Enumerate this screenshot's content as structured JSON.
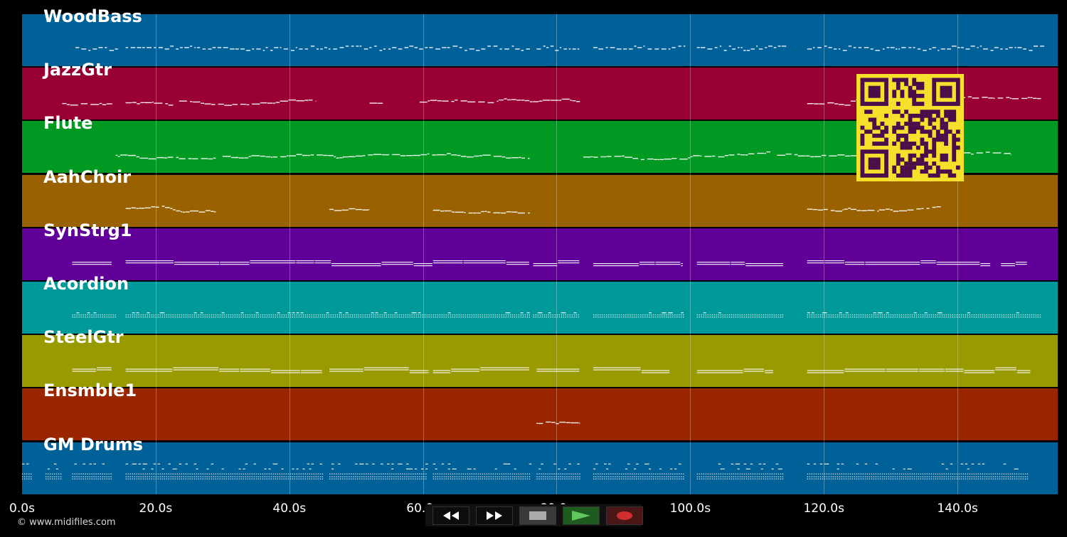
{
  "tracks": [
    {
      "name": "WoodBass",
      "color": "#006199",
      "density": "dense",
      "style": "dash",
      "segments": [
        [
          8,
          14
        ],
        [
          15.5,
          75.5
        ],
        [
          77,
          83.5
        ],
        [
          85.5,
          99
        ],
        [
          101,
          114
        ],
        [
          117.5,
          152.5
        ]
      ]
    },
    {
      "name": "JazzGtr",
      "color": "#990033",
      "density": "medium",
      "style": "melody",
      "segments": [
        [
          6,
          13.5
        ],
        [
          15.5,
          23
        ],
        [
          23.5,
          44
        ],
        [
          52,
          54
        ],
        [
          59.5,
          76
        ],
        [
          76,
          83.5
        ],
        [
          117.5,
          124
        ],
        [
          124,
          152.5
        ]
      ]
    },
    {
      "name": "Flute",
      "color": "#009922",
      "density": "medium",
      "style": "melody",
      "segments": [
        [
          14,
          29
        ],
        [
          30,
          48
        ],
        [
          48,
          76
        ],
        [
          84,
          112
        ],
        [
          113,
          148
        ]
      ]
    },
    {
      "name": "AahChoir",
      "color": "#996100",
      "density": "sparse",
      "style": "melody",
      "segments": [
        [
          15.5,
          29
        ],
        [
          46,
          52
        ],
        [
          61.5,
          76
        ],
        [
          117.5,
          124
        ],
        [
          124,
          137.5
        ]
      ]
    },
    {
      "name": "SynStrg1",
      "color": "#610099",
      "density": "sparse",
      "style": "sustain",
      "segments": [
        [
          7.5,
          13.5
        ],
        [
          15.5,
          76
        ],
        [
          76.5,
          83.5
        ],
        [
          85.5,
          99
        ],
        [
          101,
          114
        ],
        [
          117.5,
          145
        ],
        [
          146.5,
          150.5
        ]
      ]
    },
    {
      "name": "Acordion",
      "color": "#009999",
      "density": "dense",
      "style": "dot",
      "segments": [
        [
          7.5,
          14
        ],
        [
          15.5,
          76
        ],
        [
          76.5,
          83.5
        ],
        [
          85.5,
          99
        ],
        [
          101,
          114
        ],
        [
          117.5,
          152.5
        ]
      ]
    },
    {
      "name": "SteelGtr",
      "color": "#999900",
      "density": "sparse",
      "style": "sustain",
      "segments": [
        [
          7.5,
          13.5
        ],
        [
          15.5,
          45
        ],
        [
          46,
          61
        ],
        [
          61.5,
          76
        ],
        [
          77,
          83.5
        ],
        [
          85.5,
          97
        ],
        [
          101,
          112.5
        ],
        [
          117.5,
          151
        ]
      ]
    },
    {
      "name": "Ensmble1",
      "color": "#992600",
      "density": "sparse",
      "style": "melody",
      "segments": [
        [
          77,
          83.5
        ]
      ]
    },
    {
      "name": "GM Drums",
      "color": "#006199",
      "density": "dense",
      "style": "drums",
      "segments": [
        [
          0,
          1.5
        ],
        [
          3.5,
          6
        ],
        [
          7.5,
          13.5
        ],
        [
          15.5,
          45
        ],
        [
          46,
          60.5
        ],
        [
          61.5,
          76
        ],
        [
          77,
          83.5
        ],
        [
          85.5,
          99
        ],
        [
          101,
          114
        ],
        [
          117.5,
          150.5
        ]
      ]
    }
  ],
  "timeline": {
    "range_seconds": [
      0,
      155
    ],
    "tick_values": [
      0,
      20,
      40,
      60,
      80,
      100,
      120,
      140
    ],
    "tick_labels": [
      "0.0s",
      "20.0s",
      "40.0s",
      "60.0s",
      "80.0s",
      "100.0s",
      "120.0s",
      "140.0s"
    ]
  },
  "copyright": "© www.midifiles.com",
  "transport": {
    "buttons": [
      {
        "name": "rewind-button",
        "icon": "rewind-icon",
        "bg": "#0d0d0d",
        "color": "#ffffff"
      },
      {
        "name": "fast-forward-button",
        "icon": "fast-forward-icon",
        "bg": "#0d0d0d",
        "color": "#ffffff"
      },
      {
        "name": "stop-button",
        "icon": "stop-icon",
        "bg": "#3a3a3a",
        "color": "#aaaaaa"
      },
      {
        "name": "play-button",
        "icon": "play-icon",
        "bg": "#1f5a1f",
        "color": "#5ec85e"
      },
      {
        "name": "record-button",
        "icon": "record-icon",
        "bg": "#4a1616",
        "color": "#d12f2f"
      }
    ]
  },
  "qr_code": {
    "icon": "qr-code-icon",
    "bg": "#f5e12c",
    "fg": "#4a0f4a"
  }
}
